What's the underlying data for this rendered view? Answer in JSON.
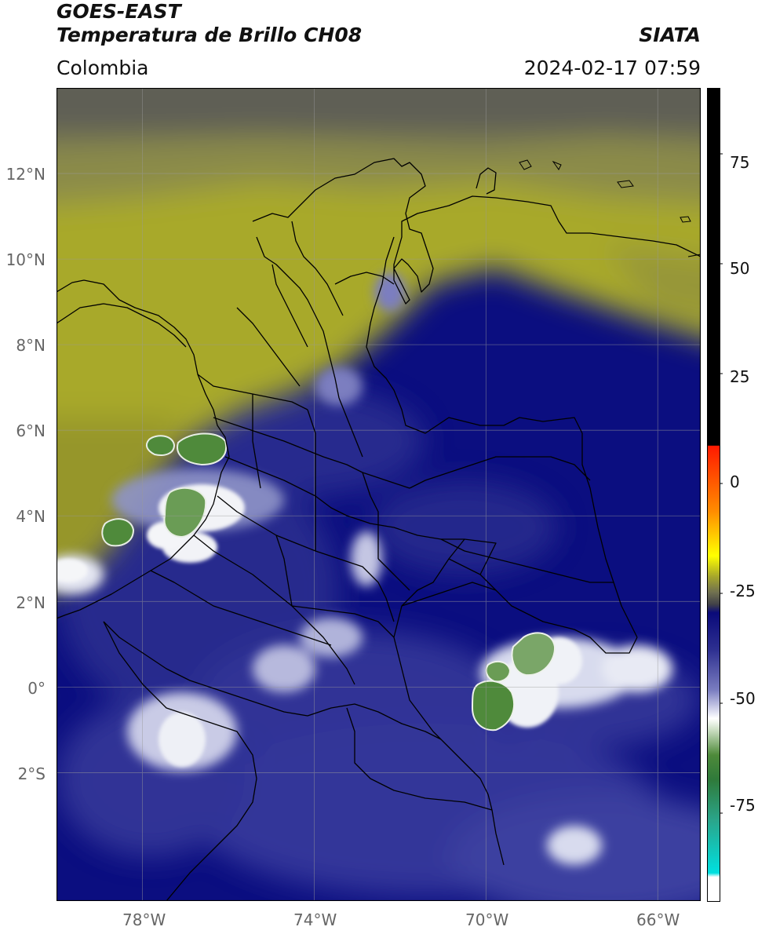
{
  "header": {
    "satellite": "GOES-EAST",
    "product": "Temperatura de Brillo CH08",
    "region": "Colombia",
    "institution": "SIATA",
    "datetime": "2024-02-17 07:59"
  },
  "map": {
    "lon_range": [
      -80,
      -65
    ],
    "lat_range": [
      -5,
      14
    ],
    "lat_ticks": [
      "12°N",
      "10°N",
      "8°N",
      "6°N",
      "4°N",
      "2°N",
      "0°",
      "2°S"
    ],
    "lon_ticks": [
      "78°W",
      "74°W",
      "70°W",
      "66°W"
    ],
    "grid": true,
    "colors": {
      "deep_blue": "#0b0e80",
      "mid_blue": "#3b3e9c",
      "light_blue": "#8f93c8",
      "white": "#f4f6f8",
      "green": "#4e8a3a",
      "olive": "#a9aa2a",
      "dark_olive": "#6e6f3a",
      "gray": "#5c5c5c",
      "border": "#000000"
    }
  },
  "colorbar": {
    "ticks": [
      "75",
      "50",
      "25",
      "0",
      "-25",
      "-50",
      "-75"
    ],
    "tick_values": [
      75,
      50,
      25,
      0,
      -25,
      -50,
      -75
    ],
    "range": [
      -95,
      90
    ]
  }
}
